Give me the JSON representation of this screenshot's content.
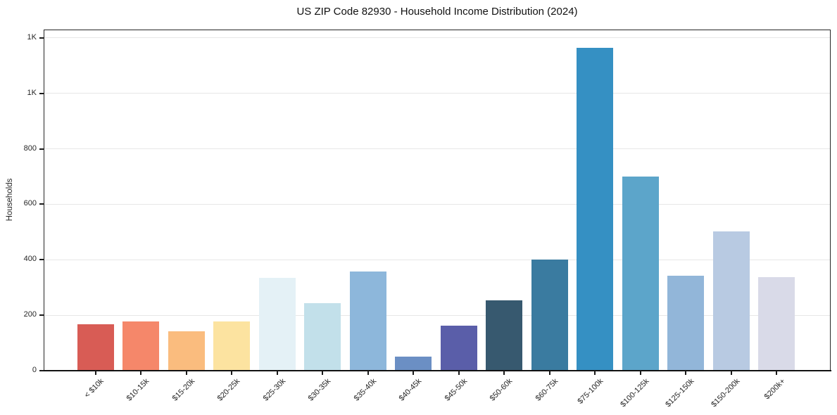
{
  "chart_data": {
    "type": "bar",
    "title": "US ZIP Code 82930 - Household Income Distribution (2024)",
    "xlabel": "",
    "ylabel": "Households",
    "categories": [
      "< $10k",
      "$10-15k",
      "$15-20k",
      "$20-25k",
      "$25-30k",
      "$30-35k",
      "$35-40k",
      "$40-45k",
      "$45-50k",
      "$50-60k",
      "$60-75k",
      "$75-100k",
      "$100-125k",
      "$125-150k",
      "$150-200k",
      "$200k+"
    ],
    "values": [
      167,
      178,
      143,
      177,
      335,
      243,
      357,
      50,
      163,
      254,
      400,
      1165,
      700,
      343,
      502,
      338
    ],
    "bar_colors": [
      "#d85c55",
      "#f5876a",
      "#fabc7e",
      "#fce3a0",
      "#e4f1f6",
      "#c2e0ea",
      "#8db7db",
      "#6b8fc4",
      "#5a5ea9",
      "#37596f",
      "#3a7ba0",
      "#3590c3",
      "#5ca5ca",
      "#92b6d9",
      "#b8cae2",
      "#d9dae8"
    ],
    "ytick_values": [
      0,
      200,
      400,
      600,
      800,
      1000,
      1200
    ],
    "ytick_labels": [
      "0",
      "200",
      "400",
      "600",
      "800",
      "1K",
      "1K"
    ],
    "ylim": [
      0,
      1230
    ],
    "x_tick_rotation": 45,
    "grid": "horizontal",
    "legend": "none",
    "background_color": "#ffffff",
    "gridline_color": "#e7e7e7"
  }
}
